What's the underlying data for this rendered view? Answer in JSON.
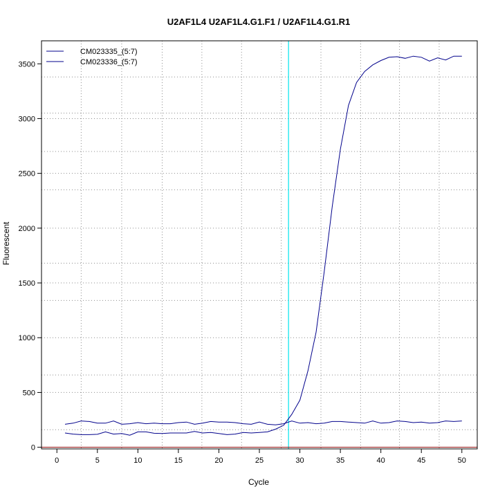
{
  "chart_data": {
    "type": "line",
    "title": "U2AF1L4  U2AF1L4.G1.F1 / U2AF1L4.G1.R1",
    "xlabel": "Cycle",
    "ylabel": "Fluorescent",
    "xlim": [
      -1.9,
      51.9
    ],
    "ylim": [
      -15,
      3710
    ],
    "x_ticks": [
      0,
      5,
      10,
      15,
      20,
      25,
      30,
      35,
      40,
      45,
      50
    ],
    "y_ticks": [
      0,
      500,
      1000,
      1500,
      2000,
      2500,
      3000,
      3500
    ],
    "grid": "dotted",
    "vertical_grid_at": [
      3,
      8,
      13,
      17.9,
      22.8,
      27.7,
      32.6,
      37.5,
      42.3,
      47.2
    ],
    "horizontal_grid_at": [
      160,
      500,
      660,
      1000,
      1340,
      1500,
      1680,
      2000,
      2350,
      2500,
      2700,
      3000,
      3050,
      3380
    ],
    "threshold_line": {
      "x": 28.6,
      "color": "#00e5ee"
    },
    "baseline": {
      "y": 0,
      "color": "#8b0000"
    },
    "legend_position": "top-left",
    "x": [
      1,
      2,
      3,
      4,
      5,
      6,
      7,
      8,
      9,
      10,
      11,
      12,
      13,
      14,
      15,
      16,
      17,
      18,
      19,
      20,
      21,
      22,
      23,
      24,
      25,
      26,
      27,
      28,
      29,
      30,
      31,
      32,
      33,
      34,
      35,
      36,
      37,
      38,
      39,
      40,
      41,
      42,
      43,
      44,
      45,
      46,
      47,
      48,
      49,
      50
    ],
    "series": [
      {
        "name": "CM023335_(5:7)",
        "color": "#00008b",
        "values": [
          130,
          120,
          115,
          115,
          118,
          140,
          120,
          125,
          110,
          140,
          140,
          128,
          125,
          130,
          130,
          130,
          145,
          130,
          135,
          125,
          115,
          120,
          135,
          130,
          135,
          140,
          165,
          200,
          300,
          430,
          700,
          1050,
          1600,
          2200,
          2720,
          3120,
          3330,
          3430,
          3490,
          3530,
          3560,
          3565,
          3550,
          3570,
          3560,
          3525,
          3555,
          3535,
          3570,
          3570
        ]
      },
      {
        "name": "CM023336_(5:7)",
        "color": "#00008b",
        "values": [
          210,
          220,
          240,
          235,
          220,
          220,
          240,
          210,
          215,
          225,
          215,
          220,
          215,
          215,
          225,
          230,
          210,
          220,
          235,
          230,
          230,
          225,
          215,
          210,
          230,
          210,
          205,
          215,
          240,
          220,
          225,
          215,
          220,
          235,
          235,
          230,
          225,
          220,
          240,
          220,
          225,
          240,
          235,
          225,
          230,
          220,
          225,
          240,
          235,
          240
        ]
      }
    ]
  }
}
